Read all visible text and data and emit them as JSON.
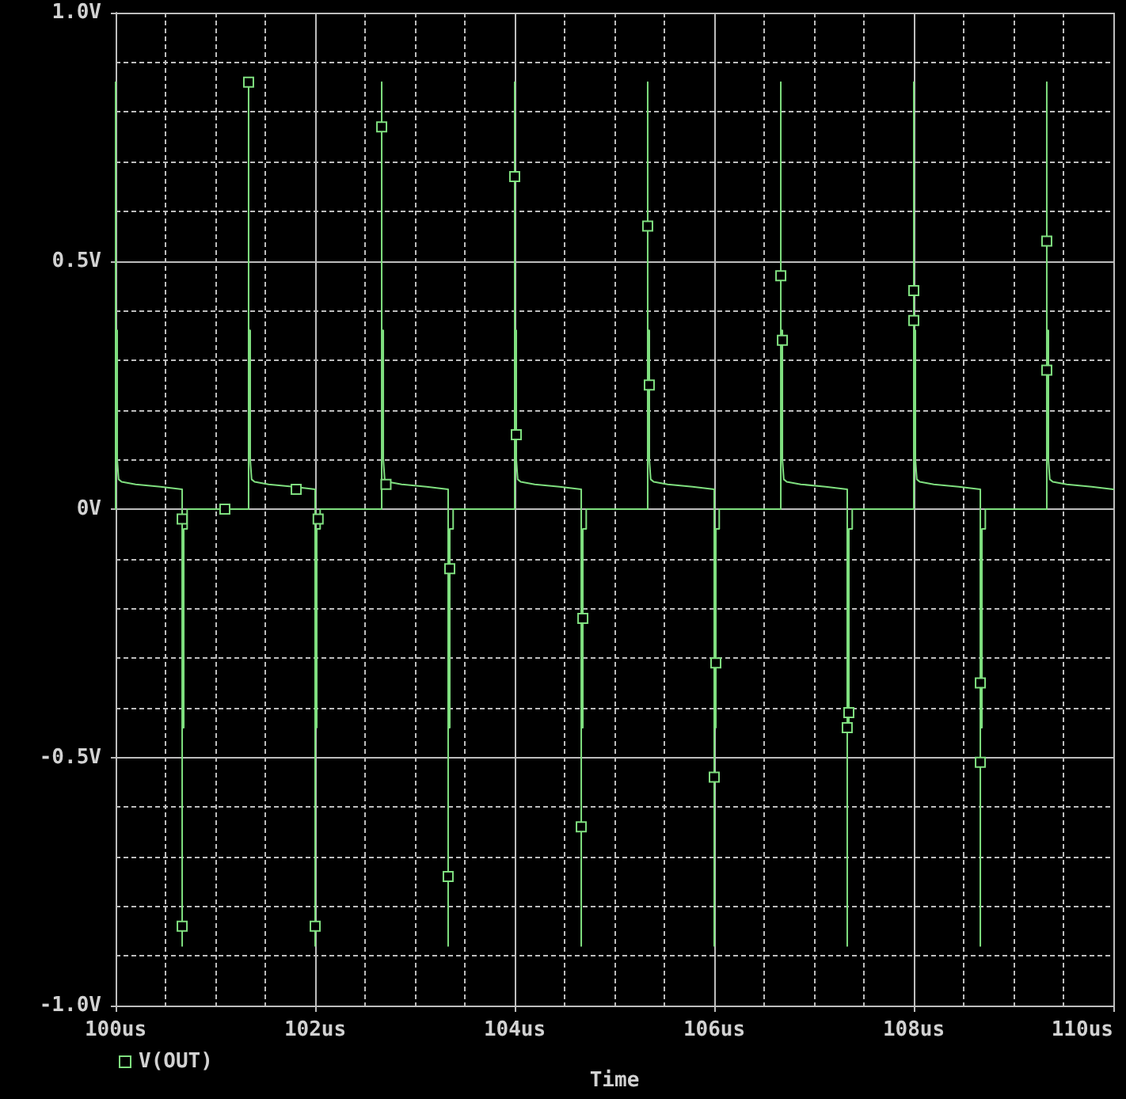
{
  "chart_data": {
    "type": "line",
    "xlabel": "Time",
    "xlim": [
      100,
      110
    ],
    "ylim": [
      -1,
      1
    ],
    "xticks": [
      {
        "value": 100,
        "label": "100us"
      },
      {
        "value": 100.5,
        "label": null
      },
      {
        "value": 101,
        "label": null
      },
      {
        "value": 101.5,
        "label": null
      },
      {
        "value": 102,
        "label": "102us"
      },
      {
        "value": 102.5,
        "label": null
      },
      {
        "value": 103,
        "label": null
      },
      {
        "value": 103.5,
        "label": null
      },
      {
        "value": 104,
        "label": "104us"
      },
      {
        "value": 104.5,
        "label": null
      },
      {
        "value": 105,
        "label": null
      },
      {
        "value": 105.5,
        "label": null
      },
      {
        "value": 106,
        "label": "106us"
      },
      {
        "value": 106.5,
        "label": null
      },
      {
        "value": 107,
        "label": null
      },
      {
        "value": 107.5,
        "label": null
      },
      {
        "value": 108,
        "label": "108us"
      },
      {
        "value": 108.5,
        "label": null
      },
      {
        "value": 109,
        "label": null
      },
      {
        "value": 109.5,
        "label": null
      },
      {
        "value": 110,
        "label": "110us"
      }
    ],
    "yticks": [
      {
        "value": -1,
        "label": "-1.0V"
      },
      {
        "value": -0.9,
        "label": null
      },
      {
        "value": -0.8,
        "label": null
      },
      {
        "value": -0.7,
        "label": null
      },
      {
        "value": -0.6,
        "label": null
      },
      {
        "value": -0.5,
        "label": "-0.5V"
      },
      {
        "value": -0.4,
        "label": null
      },
      {
        "value": -0.3,
        "label": null
      },
      {
        "value": -0.2,
        "label": null
      },
      {
        "value": -0.1,
        "label": null
      },
      {
        "value": 0,
        "label": "0V"
      },
      {
        "value": 0.1,
        "label": null
      },
      {
        "value": 0.2,
        "label": null
      },
      {
        "value": 0.3,
        "label": null
      },
      {
        "value": 0.4,
        "label": null
      },
      {
        "value": 0.5,
        "label": "0.5V"
      },
      {
        "value": 0.6,
        "label": null
      },
      {
        "value": 0.7,
        "label": null
      },
      {
        "value": 0.8,
        "label": null
      },
      {
        "value": 0.9,
        "label": null
      },
      {
        "value": 1,
        "label": "1.0V"
      }
    ],
    "grid": true,
    "legend": "bottom left",
    "marker": "square",
    "series": [
      {
        "name": "V(OUT)",
        "marker": "none",
        "color": "#7fdf7f",
        "x": [
          100,
          100,
          100,
          100.016,
          100.016,
          100.03,
          100.06,
          100.2,
          100.45,
          100.667,
          100.667,
          100.667,
          100.683,
          100.683,
          100.717,
          100.717,
          101.333,
          101.333,
          101.333,
          101.349,
          101.349,
          101.363,
          101.393,
          101.533,
          101.783,
          102,
          102,
          102,
          102.016,
          102.016,
          102.05,
          102.05,
          102.667,
          102.667,
          102.667,
          102.683,
          102.683,
          102.697,
          102.727,
          102.867,
          103.117,
          103.333,
          103.333,
          103.333,
          103.349,
          103.349,
          103.383,
          103.383,
          104,
          104,
          104,
          104.016,
          104.016,
          104.03,
          104.06,
          104.2,
          104.45,
          104.667,
          104.667,
          104.667,
          104.683,
          104.683,
          104.717,
          104.717,
          105.333,
          105.333,
          105.333,
          105.349,
          105.349,
          105.363,
          105.393,
          105.533,
          105.783,
          106,
          106,
          106,
          106.016,
          106.016,
          106.05,
          106.05,
          106.667,
          106.667,
          106.667,
          106.683,
          106.683,
          106.697,
          106.727,
          106.867,
          107.117,
          107.333,
          107.333,
          107.333,
          107.349,
          107.349,
          107.383,
          107.383,
          108,
          108,
          108,
          108.016,
          108.016,
          108.03,
          108.06,
          108.2,
          108.45,
          108.667,
          108.667,
          108.667,
          108.683,
          108.683,
          108.717,
          108.717,
          109.333,
          109.333,
          109.333,
          109.349,
          109.349,
          109.363,
          109.393,
          109.533,
          109.783,
          110
        ],
        "values": [
          0,
          0.86,
          0.36,
          0.36,
          0.1,
          0.06,
          0.055,
          0.05,
          0.045,
          0.04,
          -0.88,
          -0.44,
          -0.44,
          -0.04,
          -0.04,
          0,
          0,
          0.86,
          0.36,
          0.36,
          0.1,
          0.06,
          0.055,
          0.05,
          0.045,
          0.04,
          -0.88,
          -0.44,
          -0.44,
          -0.04,
          -0.04,
          0,
          0,
          0.86,
          0.36,
          0.36,
          0.1,
          0.06,
          0.055,
          0.05,
          0.045,
          0.04,
          -0.88,
          -0.44,
          -0.44,
          -0.04,
          -0.04,
          0,
          0,
          0.86,
          0.36,
          0.36,
          0.1,
          0.06,
          0.055,
          0.05,
          0.045,
          0.04,
          -0.88,
          -0.44,
          -0.44,
          -0.04,
          -0.04,
          0,
          0,
          0.86,
          0.36,
          0.36,
          0.1,
          0.06,
          0.055,
          0.05,
          0.045,
          0.04,
          -0.88,
          -0.44,
          -0.44,
          -0.04,
          -0.04,
          0,
          0,
          0.86,
          0.36,
          0.36,
          0.1,
          0.06,
          0.055,
          0.05,
          0.045,
          0.04,
          -0.88,
          -0.44,
          -0.44,
          -0.04,
          -0.04,
          0,
          0,
          0.86,
          0.36,
          0.36,
          0.1,
          0.06,
          0.055,
          0.05,
          0.045,
          0.04,
          -0.88,
          -0.44,
          -0.44,
          -0.04,
          -0.04,
          0,
          0,
          0.86,
          0.36,
          0.36,
          0.1,
          0.06,
          0.055,
          0.05,
          0.045,
          0.04
        ]
      },
      {
        "type": "scatter",
        "color": "#7fdf7f",
        "x": [
          100.667,
          100.667,
          101.095,
          101.333,
          101.81,
          102,
          102.03,
          102.667,
          102.71,
          103.333,
          103.349,
          104,
          104.016,
          104.667,
          104.683,
          105.333,
          105.349,
          106,
          106.016,
          106.667,
          106.683,
          107.333,
          107.349,
          108,
          108,
          108.667,
          108.667,
          109.333,
          109.333
        ],
        "values": [
          -0.02,
          -0.84,
          0,
          0.86,
          0.04,
          -0.84,
          -0.02,
          0.77,
          0.05,
          -0.74,
          -0.12,
          0.67,
          0.15,
          -0.64,
          -0.22,
          0.57,
          0.25,
          -0.54,
          -0.31,
          0.47,
          0.34,
          -0.44,
          -0.41,
          0.44,
          0.38,
          -0.51,
          -0.35,
          0.54,
          0.28
        ]
      }
    ]
  }
}
